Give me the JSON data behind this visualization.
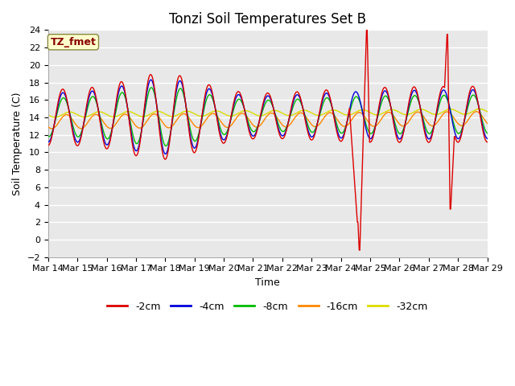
{
  "title": "Tonzi Soil Temperatures Set B",
  "xlabel": "Time",
  "ylabel": "Soil Temperature (C)",
  "ylim": [
    -2,
    24
  ],
  "yticks": [
    -2,
    0,
    2,
    4,
    6,
    8,
    10,
    12,
    14,
    16,
    18,
    20,
    22,
    24
  ],
  "xtick_labels": [
    "Mar 14",
    "Mar 15",
    "Mar 16",
    "Mar 17",
    "Mar 18",
    "Mar 19",
    "Mar 20",
    "Mar 21",
    "Mar 22",
    "Mar 23",
    "Mar 24",
    "Mar 25",
    "Mar 26",
    "Mar 27",
    "Mar 28",
    "Mar 29"
  ],
  "series_colors": [
    "#dd0000",
    "#0000dd",
    "#00bb00",
    "#ff8800",
    "#dddd00"
  ],
  "series_labels": [
    "-2cm",
    "-4cm",
    "-8cm",
    "-16cm",
    "-32cm"
  ],
  "annotation_text": "TZ_fmet",
  "annotation_bg": "#ffffcc",
  "annotation_fg": "#880000",
  "plot_bg": "#e8e8e8",
  "fig_bg": "#ffffff",
  "grid_color": "#ffffff",
  "title_fontsize": 12,
  "axis_fontsize": 9,
  "tick_fontsize": 8,
  "legend_fontsize": 9
}
